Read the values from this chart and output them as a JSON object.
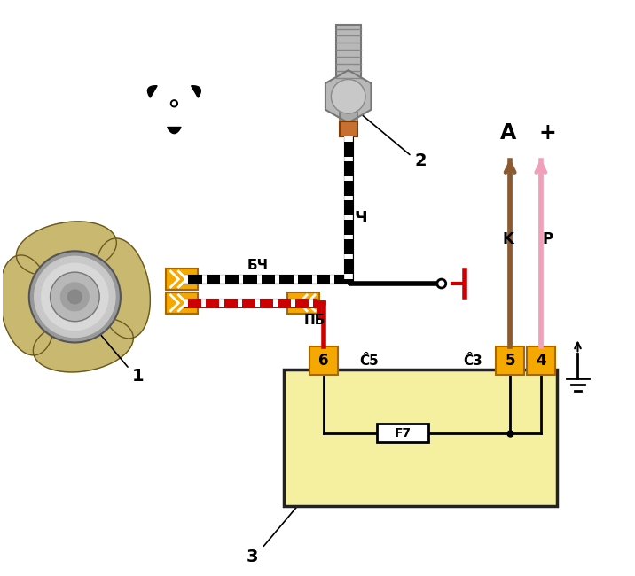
{
  "bg_color": "#ffffff",
  "fan_blade_color": "#c8b870",
  "fan_blade_outline": "#6b5a20",
  "fan_hub_outer": "#b8b8b8",
  "fan_hub_mid": "#d0d0d0",
  "fan_hub_inner": "#a0a0a0",
  "connector_color": "#f5a800",
  "connector_edge": "#aa6600",
  "box_fill": "#f5f0a0",
  "box_edge": "#222222",
  "wire_bch_black": "#111111",
  "wire_pb_red": "#cc0000",
  "wire_ch_black": "#111111",
  "arrow_brown": "#8B5A30",
  "arrow_pink": "#F0A0B8",
  "sensor_grey": "#b5b5b5",
  "sensor_thread": "#999999",
  "sensor_copper": "#c87030",
  "switch_red": "#cc0000",
  "label_bch": "БЧ",
  "label_pb": "ПБ",
  "label_ch": "Ч",
  "label_sh5": "Ĉ5",
  "label_sh3": "Ĉ3",
  "label_f7": "F7",
  "label_A": "A",
  "label_plus": "+",
  "label_K": "K",
  "label_P": "P",
  "num1": "1",
  "num2": "2",
  "num3": "3",
  "num4": "4",
  "num5": "5",
  "num6": "6",
  "figw": 7.16,
  "figh": 6.5,
  "dpi": 100
}
